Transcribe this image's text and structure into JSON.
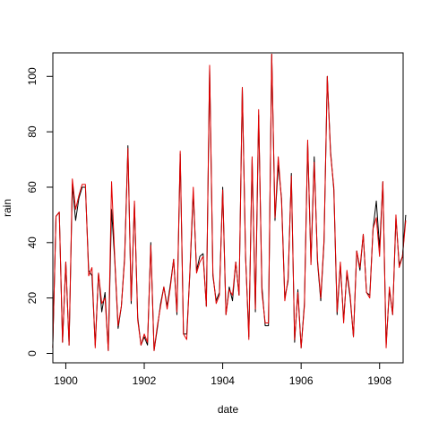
{
  "chart_data": {
    "type": "line",
    "xlabel": "date",
    "ylabel": "rain",
    "xlim": [
      1899.67,
      1908.6
    ],
    "ylim": [
      -3.4,
      108.5
    ],
    "x_ticks": [
      1900,
      1902,
      1904,
      1906,
      1908
    ],
    "y_ticks": [
      0,
      20,
      40,
      60,
      80,
      100
    ],
    "grid": false,
    "legend": "none",
    "x_start": 1899.667,
    "x_step": 0.08333,
    "series": [
      {
        "color": "#000000",
        "values": [
          2,
          49.5,
          51,
          4,
          33,
          3,
          61,
          48,
          56,
          60,
          60,
          30,
          28,
          3,
          29,
          15,
          22,
          1,
          52,
          33,
          9,
          17,
          35,
          75,
          18,
          54,
          13,
          3,
          6,
          3,
          40,
          1,
          9,
          18,
          24,
          17,
          25,
          34,
          14,
          72,
          7,
          7,
          30,
          58,
          30,
          35,
          36,
          17,
          103,
          28,
          19,
          22,
          60,
          14,
          24,
          19,
          33,
          21,
          96,
          35,
          6,
          70,
          15,
          86,
          24,
          10,
          10,
          108,
          48,
          68,
          56,
          20,
          26,
          65,
          4,
          23,
          2,
          18,
          76,
          33,
          71,
          33,
          19,
          40,
          100,
          73,
          59,
          14,
          32,
          12,
          29,
          20,
          6,
          37,
          30,
          43,
          22,
          21,
          45,
          55,
          38,
          62,
          3,
          23,
          14,
          49,
          32,
          35,
          50
        ]
      },
      {
        "color": "#e10000",
        "values": [
          2,
          49.5,
          51,
          4,
          33,
          3,
          63,
          52,
          57,
          61,
          61,
          28,
          31,
          2,
          29,
          18,
          20,
          1,
          62,
          34,
          10,
          17,
          34,
          74,
          19,
          55,
          12,
          3,
          7,
          4,
          39,
          1,
          10,
          17,
          24,
          16,
          24,
          34,
          15,
          73,
          7,
          5,
          31,
          60,
          29,
          33,
          35,
          17,
          104,
          29,
          18,
          21,
          59,
          14,
          23,
          21,
          33,
          21,
          96,
          35,
          5,
          71,
          16,
          88,
          22,
          11,
          11,
          108,
          49,
          71,
          55,
          19,
          27,
          64,
          5,
          22,
          2,
          17,
          77,
          32,
          69,
          34,
          20,
          41,
          100,
          72,
          60,
          15,
          33,
          11,
          30,
          21,
          6,
          37,
          31,
          43,
          22,
          20,
          45,
          49,
          35,
          62,
          2,
          24,
          14,
          50,
          31,
          35,
          48
        ]
      }
    ]
  }
}
